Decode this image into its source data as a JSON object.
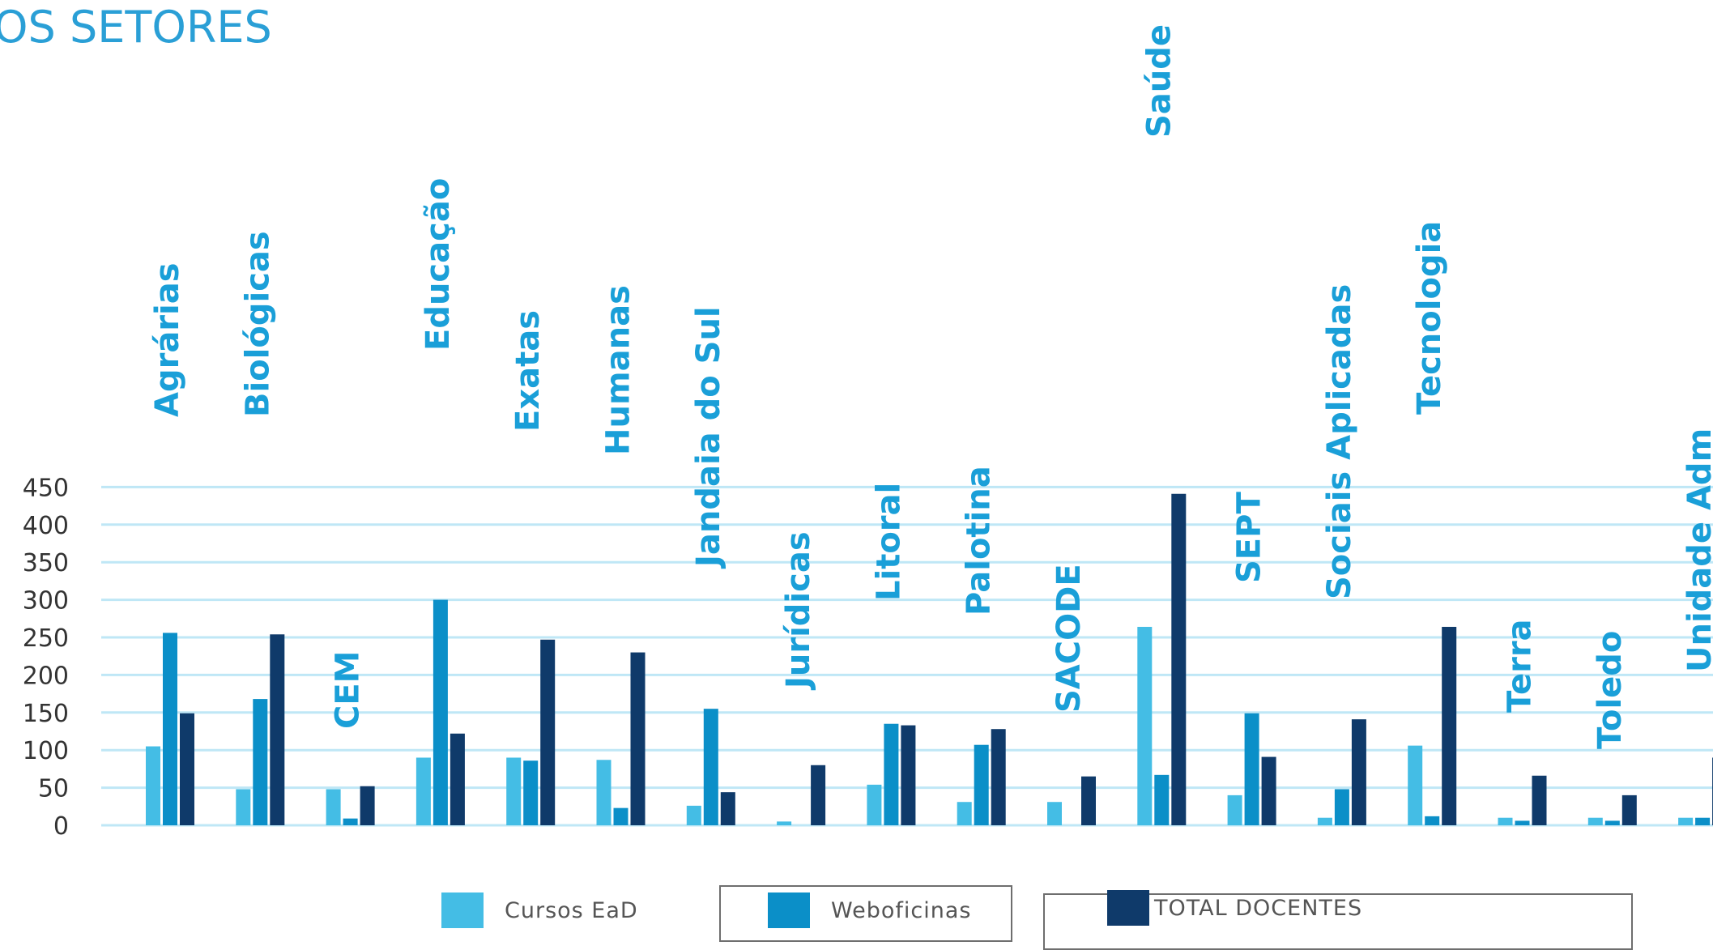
{
  "page": {
    "title": "OS SETORES"
  },
  "colors": {
    "cursos": "#44bde5",
    "weboficinas": "#0b8fc8",
    "total": "#0f3a6a",
    "grid": "#bfe7f6",
    "axis_text": "#333333",
    "category_label": "#1a9fd8"
  },
  "chart_data": {
    "type": "bar",
    "title": "OS SETORES",
    "xlabel": "",
    "ylabel": "",
    "ylim": [
      0,
      450
    ],
    "yticks": [
      0,
      50,
      100,
      150,
      200,
      250,
      300,
      350,
      400,
      450
    ],
    "grid": true,
    "legend_position": "bottom",
    "categories": [
      "Agrárias",
      "Biológicas",
      "CEM",
      "Educação",
      "Exatas",
      "Humanas",
      "Jandaia do Sul",
      "Jurídicas",
      "Litoral",
      "Palotina",
      "SACODE",
      "Saúde",
      "SEPT",
      "Sociais Aplicadas",
      "Tecnologia",
      "Terra",
      "Toledo",
      "Unidade Adm"
    ],
    "series": [
      {
        "name": "Cursos EaD",
        "values": [
          105,
          48,
          48,
          90,
          90,
          87,
          26,
          5,
          54,
          31,
          31,
          264,
          40,
          10,
          106,
          10,
          10,
          10
        ]
      },
      {
        "name": "Weboficinas",
        "values": [
          256,
          168,
          9,
          null,
          86,
          23,
          155,
          null,
          135,
          107,
          null,
          67,
          149,
          48,
          12,
          6,
          6,
          10
        ]
      },
      {
        "name": "TOTAL DOCENTES",
        "values": [
          149,
          254,
          52,
          122,
          247,
          230,
          44,
          80,
          133,
          128,
          65,
          441,
          91,
          141,
          264,
          66,
          40,
          90
        ]
      }
    ],
    "extra_bars": [
      {
        "category": "Educação",
        "series": "Weboficinas",
        "value": 300
      },
      {
        "category": "Jurídicas",
        "series": "Weboficinas",
        "value": 0
      },
      {
        "category": "SACODE",
        "series": "Weboficinas",
        "value": 0
      }
    ]
  },
  "legend": {
    "items": [
      {
        "label": "Cursos EaD",
        "series": "cursos"
      },
      {
        "label": "Weboficinas",
        "series": "weboficinas"
      },
      {
        "label": "TOTAL DOCENTES",
        "series": "total"
      }
    ]
  }
}
